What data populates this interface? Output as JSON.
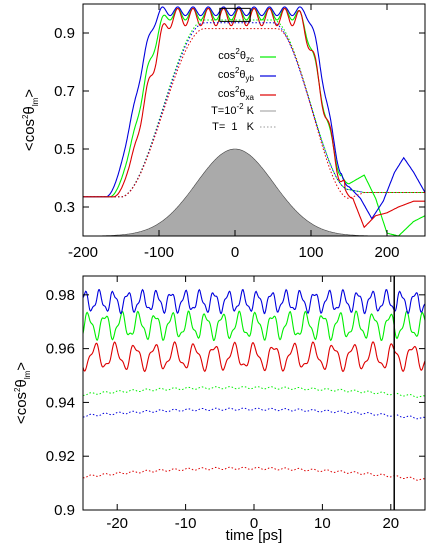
{
  "colors": {
    "zc": "#00ee00",
    "yb": "#0000dd",
    "xa": "#dd0000",
    "pulse_fill": "#aaaaaa",
    "pulse_edge": "#444444",
    "low_temp_line": "#999999",
    "marker": "#000000"
  },
  "chart_data": [
    {
      "type": "line",
      "ylabel": "<cos²θlm>",
      "xlim": [
        -200,
        250
      ],
      "ylim": [
        0.2,
        1.0
      ],
      "x_ticks": [
        -200,
        -100,
        0,
        100,
        200
      ],
      "y_ticks": [
        0.3,
        0.5,
        0.7,
        0.9
      ],
      "x_tick_labels": [
        "-200",
        "-100",
        "0",
        "100",
        "200"
      ],
      "y_tick_labels": [
        "0.3",
        "0.5",
        "0.7",
        "0.9"
      ],
      "grid": false,
      "legend": {
        "placement": "right of center",
        "entries": [
          {
            "label_main": "cos",
            "label_sup": "2",
            "label_mid": "θ",
            "label_sub": "zc",
            "color": "zc",
            "style": "solid"
          },
          {
            "label_main": "cos",
            "label_sup": "2",
            "label_mid": "θ",
            "label_sub": "yb",
            "color": "yb",
            "style": "solid"
          },
          {
            "label_main": "cos",
            "label_sup": "2",
            "label_mid": "θ",
            "label_sub": "xa",
            "color": "xa",
            "style": "solid"
          },
          {
            "label_main": "T=10",
            "label_sup": "-2",
            "label_mid": " K",
            "label_sub": "",
            "color": "low_temp_line",
            "style": "solid"
          },
          {
            "label_main": "T=  1   K",
            "label_sup": "",
            "label_mid": "",
            "label_sub": "",
            "color": "low_temp_line",
            "style": "dotted"
          }
        ]
      },
      "inset_box": {
        "x": [
          -20,
          20
        ],
        "y": [
          0.94,
          0.985
        ]
      },
      "pulse": {
        "center": 0,
        "fwhm": 120,
        "peak": 0.5,
        "base": 0.2
      },
      "series_params": [
        {
          "id": "zc",
          "color": "zc",
          "style": "solid",
          "base": 0.335,
          "plateau": 0.965,
          "rise_start": -165,
          "rise_end": -85,
          "fall_start": 80,
          "fall_end": 150,
          "wiggle": 0.02,
          "tail": [
            [
              150,
              0.38
            ],
            [
              170,
              0.41
            ],
            [
              185,
              0.33
            ],
            [
              200,
              0.21
            ],
            [
              215,
              0.2
            ],
            [
              235,
              0.25
            ],
            [
              250,
              0.27
            ]
          ]
        },
        {
          "id": "yb",
          "color": "yb",
          "style": "solid",
          "base": 0.335,
          "plateau": 0.975,
          "rise_start": -170,
          "rise_end": -95,
          "fall_start": 90,
          "fall_end": 150,
          "wiggle": 0.015,
          "tail": [
            [
              150,
              0.37
            ],
            [
              165,
              0.33
            ],
            [
              180,
              0.26
            ],
            [
              195,
              0.32
            ],
            [
              210,
              0.42
            ],
            [
              222,
              0.47
            ],
            [
              235,
              0.42
            ],
            [
              250,
              0.35
            ]
          ]
        },
        {
          "id": "xa",
          "color": "xa",
          "style": "solid",
          "base": 0.335,
          "plateau": 0.955,
          "rise_start": -160,
          "rise_end": -80,
          "fall_start": 80,
          "fall_end": 155,
          "wiggle": 0.03,
          "tail": [
            [
              155,
              0.33
            ],
            [
              170,
              0.23
            ],
            [
              185,
              0.27
            ],
            [
              200,
              0.28
            ],
            [
              215,
              0.3
            ],
            [
              235,
              0.32
            ],
            [
              250,
              0.32
            ]
          ]
        },
        {
          "id": "zc_warm",
          "color": "zc",
          "style": "dotted",
          "base": 0.335,
          "plateau": 0.945,
          "rise_start": -150,
          "rise_end": -40,
          "fall_start": 50,
          "fall_end": 150,
          "wiggle": 0,
          "tail": [
            [
              150,
              0.36
            ],
            [
              170,
              0.35
            ],
            [
              250,
              0.35
            ]
          ]
        },
        {
          "id": "yb_warm",
          "color": "yb",
          "style": "dotted",
          "base": 0.335,
          "plateau": 0.935,
          "rise_start": -150,
          "rise_end": -40,
          "fall_start": 50,
          "fall_end": 150,
          "wiggle": 0,
          "tail": [
            [
              150,
              0.36
            ],
            [
              170,
              0.35
            ],
            [
              250,
              0.35
            ]
          ]
        },
        {
          "id": "xa_warm",
          "color": "xa",
          "style": "dotted",
          "base": 0.335,
          "plateau": 0.915,
          "rise_start": -150,
          "rise_end": -40,
          "fall_start": 55,
          "fall_end": 150,
          "wiggle": 0,
          "tail": [
            [
              150,
              0.33
            ],
            [
              170,
              0.35
            ],
            [
              250,
              0.35
            ]
          ]
        }
      ]
    },
    {
      "type": "line",
      "xlabel": "time [ps]",
      "ylabel": "<cos²θlm>",
      "xlim": [
        -25,
        25
      ],
      "ylim": [
        0.9,
        0.987
      ],
      "x_ticks": [
        -20,
        -10,
        0,
        10,
        20
      ],
      "y_ticks": [
        0.9,
        0.92,
        0.94,
        0.96,
        0.98
      ],
      "x_tick_labels": [
        "-20",
        "-10",
        "0",
        "10",
        "20"
      ],
      "y_tick_labels": [
        "0.9",
        "0.92",
        "0.94",
        "0.96",
        "0.98"
      ],
      "grid": false,
      "vertical_marker_x": 20.5,
      "series_params": [
        {
          "id": "zc",
          "color": "zc",
          "style": "solid",
          "mean": 0.9685,
          "amp": 0.0055,
          "period": 2.45,
          "phase": 0.9
        },
        {
          "id": "yb",
          "color": "yb",
          "style": "solid",
          "mean": 0.9775,
          "amp": 0.0045,
          "period": 2.1,
          "phase": 0.2
        },
        {
          "id": "xa",
          "color": "xa",
          "style": "solid",
          "mean": 0.957,
          "amp": 0.0055,
          "period": 2.9,
          "phase": 1.6
        },
        {
          "id": "zc_warm",
          "color": "zc",
          "style": "dotted",
          "mean": 0.9455,
          "curv": 0.0012,
          "center": -2
        },
        {
          "id": "yb_warm",
          "color": "yb",
          "style": "dotted",
          "mean": 0.9375,
          "curv": 0.0012,
          "center": -2
        },
        {
          "id": "xa_warm",
          "color": "xa",
          "style": "dotted",
          "mean": 0.9155,
          "curv": 0.0015,
          "center": -2
        }
      ]
    }
  ]
}
